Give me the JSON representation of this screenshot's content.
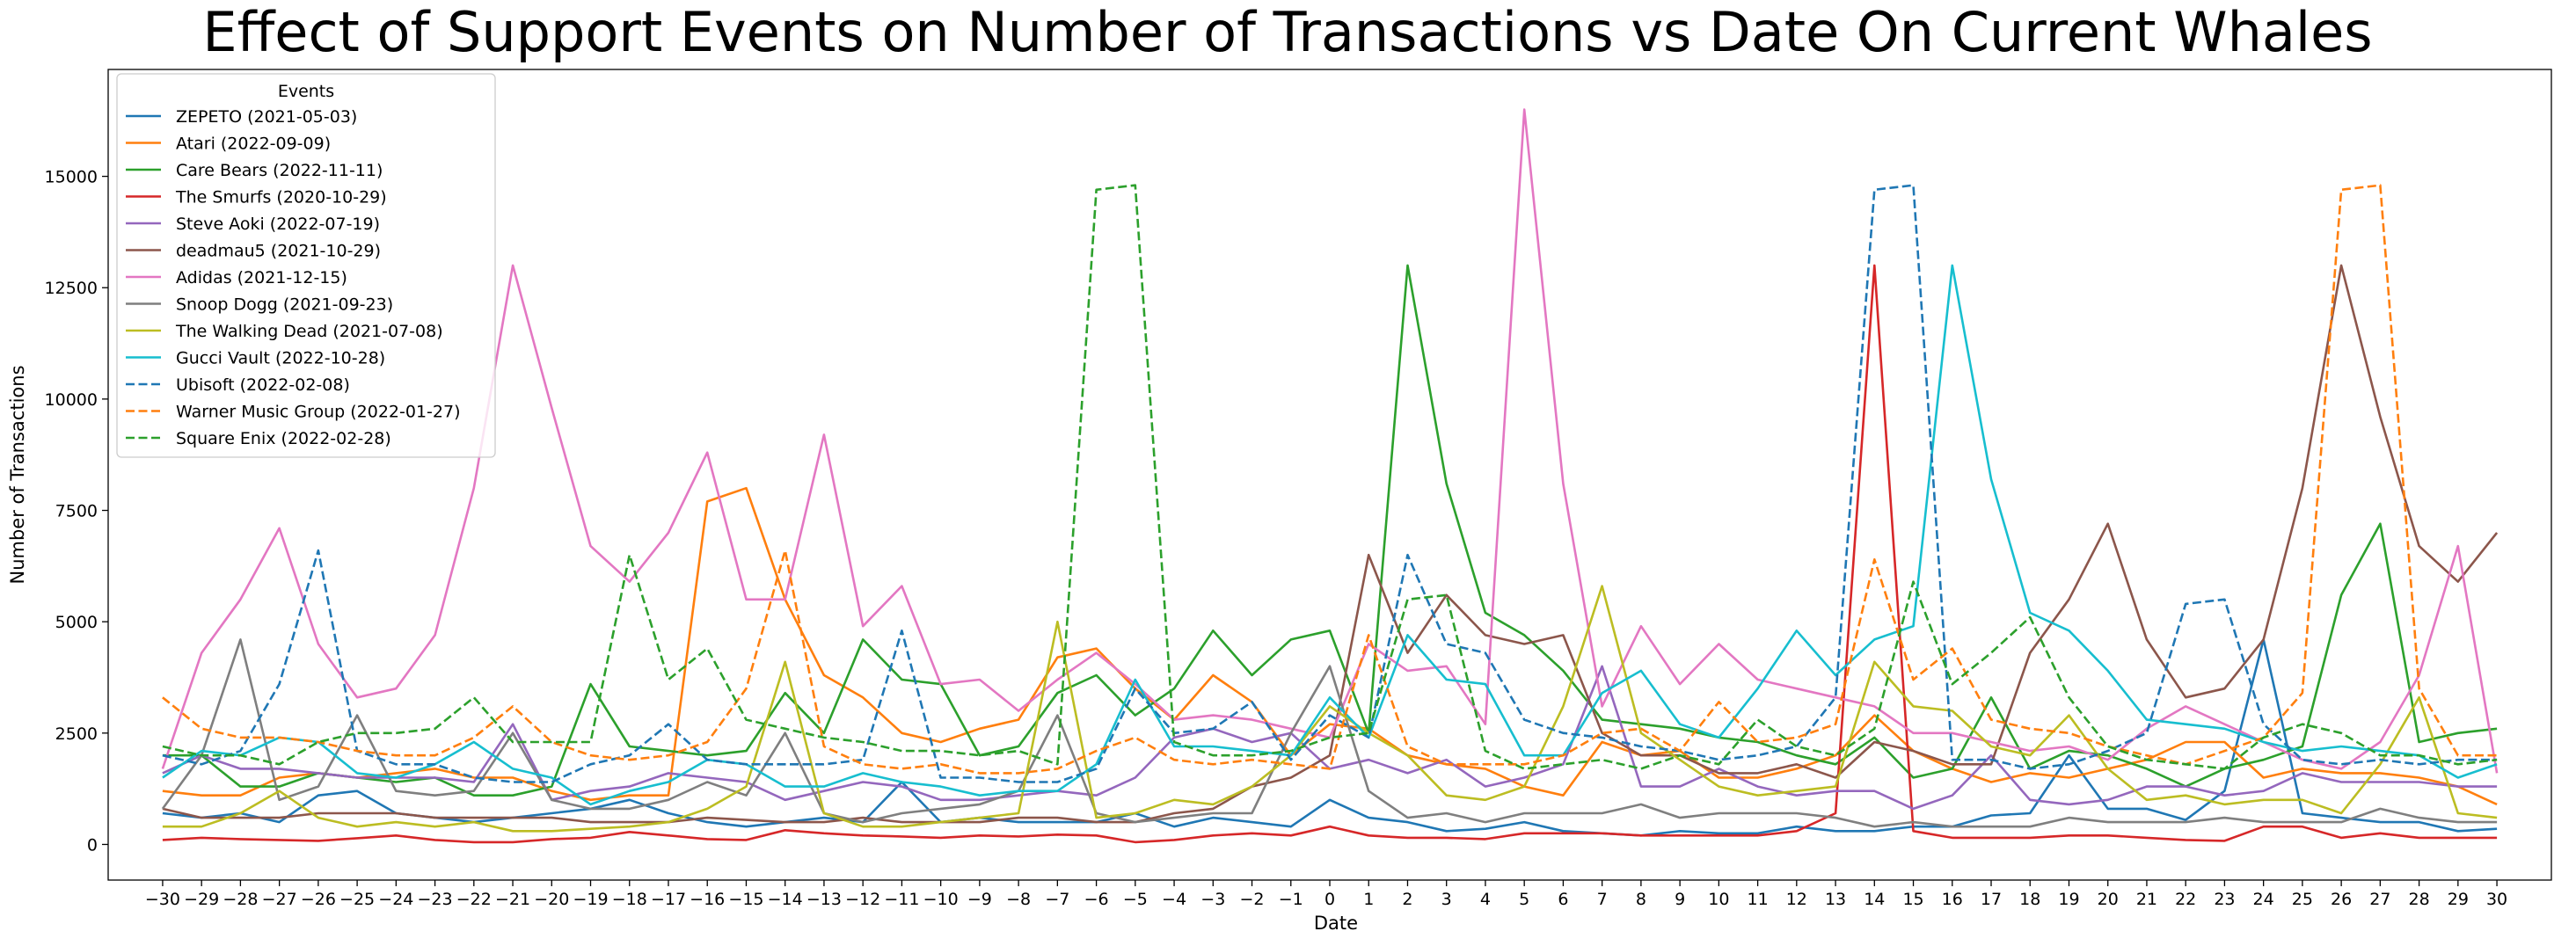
{
  "chart_data": {
    "type": "line",
    "title": "Effect of Support Events on Number of Transactions vs Date On Current Whales",
    "xlabel": "Date",
    "ylabel": "Number of Transactions",
    "legend_title": "Events",
    "legend_position": "top-left",
    "grid": false,
    "xlim": [
      -31.4,
      31.4
    ],
    "ylim": [
      -800,
      17400
    ],
    "x": [
      -30,
      -29,
      -28,
      -27,
      -26,
      -25,
      -24,
      -23,
      -22,
      -21,
      -20,
      -19,
      -18,
      -17,
      -16,
      -15,
      -14,
      -13,
      -12,
      -11,
      -10,
      -9,
      -8,
      -7,
      -6,
      -5,
      -4,
      -3,
      -2,
      -1,
      0,
      1,
      2,
      3,
      4,
      5,
      6,
      7,
      8,
      9,
      10,
      11,
      12,
      13,
      14,
      15,
      16,
      17,
      18,
      19,
      20,
      21,
      22,
      23,
      24,
      25,
      26,
      27,
      28,
      29,
      30
    ],
    "x_tick_labels": [
      "−30",
      "−29",
      "−28",
      "−27",
      "−26",
      "−25",
      "−24",
      "−23",
      "−22",
      "−21",
      "−20",
      "−19",
      "−18",
      "−17",
      "−16",
      "−15",
      "−14",
      "−13",
      "−12",
      "−11",
      "−10",
      "−9",
      "−8",
      "−7",
      "−6",
      "−5",
      "−4",
      "−3",
      "−2",
      "−1",
      "0",
      "1",
      "2",
      "3",
      "4",
      "5",
      "6",
      "7",
      "8",
      "9",
      "10",
      "11",
      "12",
      "13",
      "14",
      "15",
      "16",
      "17",
      "18",
      "19",
      "20",
      "21",
      "22",
      "23",
      "24",
      "25",
      "26",
      "27",
      "28",
      "29",
      "30"
    ],
    "y_ticks": [
      0,
      2500,
      5000,
      7500,
      10000,
      12500,
      15000
    ],
    "y_tick_labels": [
      "0",
      "2500",
      "5000",
      "7500",
      "10000",
      "12500",
      "15000"
    ],
    "series": [
      {
        "name": "ZEPETO (2021-05-03)",
        "color": "#1f77b4",
        "dash": "solid",
        "values": [
          700,
          600,
          700,
          500,
          1100,
          1200,
          700,
          600,
          500,
          600,
          700,
          800,
          1000,
          700,
          500,
          400,
          500,
          600,
          500,
          1400,
          500,
          600,
          500,
          500,
          500,
          700,
          400,
          600,
          500,
          400,
          1000,
          600,
          500,
          300,
          350,
          500,
          300,
          250,
          200,
          300,
          250,
          250,
          400,
          300,
          300,
          400,
          400,
          650,
          700,
          2000,
          800,
          800,
          550,
          1200,
          4600,
          700,
          600,
          500,
          500,
          300,
          350
        ]
      },
      {
        "name": "Atari (2022-09-09)",
        "color": "#ff7f0e",
        "dash": "solid",
        "values": [
          1200,
          1100,
          1100,
          1500,
          1600,
          1500,
          1600,
          1700,
          1500,
          1500,
          1200,
          1000,
          1100,
          1100,
          7700,
          8000,
          5500,
          3800,
          3300,
          2500,
          2300,
          2600,
          2800,
          4200,
          4400,
          3500,
          2800,
          3800,
          3200,
          2000,
          2700,
          2600,
          2000,
          1800,
          1700,
          1300,
          1100,
          2300,
          2000,
          2100,
          1500,
          1500,
          1700,
          2000,
          2900,
          2100,
          1700,
          1400,
          1600,
          1500,
          1700,
          1900,
          2300,
          2300,
          1500,
          1700,
          1600,
          1600,
          1500,
          1300,
          900
        ]
      },
      {
        "name": "Care Bears (2022-11-11)",
        "color": "#2ca02c",
        "dash": "solid",
        "values": [
          2000,
          2000,
          1300,
          1300,
          1600,
          1500,
          1400,
          1500,
          1100,
          1100,
          1300,
          3600,
          2200,
          2100,
          2000,
          2100,
          3400,
          2500,
          4600,
          3700,
          3600,
          2000,
          2200,
          3400,
          3800,
          2900,
          3500,
          4800,
          3800,
          4600,
          4800,
          2500,
          13000,
          8100,
          5200,
          4700,
          3900,
          2800,
          2700,
          2600,
          2400,
          2300,
          2000,
          1800,
          2400,
          1500,
          1700,
          3300,
          1700,
          2100,
          2000,
          1700,
          1300,
          1700,
          1900,
          2200,
          5600,
          7200,
          2300,
          2500,
          2600
        ]
      },
      {
        "name": "The Smurfs (2020-10-29)",
        "color": "#d62728",
        "dash": "solid",
        "values": [
          100,
          150,
          120,
          100,
          80,
          140,
          200,
          100,
          50,
          50,
          120,
          150,
          280,
          200,
          120,
          100,
          320,
          250,
          200,
          180,
          150,
          200,
          180,
          220,
          200,
          50,
          100,
          200,
          250,
          200,
          400,
          200,
          150,
          150,
          120,
          250,
          250,
          250,
          200,
          200,
          200,
          200,
          300,
          700,
          13000,
          300,
          150,
          150,
          150,
          200,
          200,
          150,
          100,
          80,
          400,
          400,
          150,
          250,
          150,
          150,
          150
        ]
      },
      {
        "name": "Steve Aoki (2022-07-19)",
        "color": "#9467bd",
        "dash": "solid",
        "values": [
          1600,
          2000,
          1700,
          1700,
          1600,
          1500,
          1500,
          1500,
          1400,
          2700,
          1000,
          1200,
          1300,
          1600,
          1500,
          1400,
          1000,
          1200,
          1400,
          1300,
          1000,
          1000,
          1100,
          1200,
          1100,
          1500,
          2400,
          2600,
          2300,
          2500,
          1700,
          1900,
          1600,
          1900,
          1300,
          1500,
          1800,
          4000,
          1300,
          1300,
          1700,
          1300,
          1100,
          1200,
          1200,
          800,
          1100,
          2000,
          1000,
          900,
          1000,
          1300,
          1300,
          1100,
          1200,
          1600,
          1400,
          1400,
          1400,
          1300,
          1300
        ]
      },
      {
        "name": "deadmau5 (2021-10-29)",
        "color": "#8c564b",
        "dash": "solid",
        "values": [
          800,
          600,
          600,
          600,
          700,
          700,
          700,
          600,
          600,
          600,
          600,
          500,
          500,
          500,
          600,
          550,
          500,
          500,
          600,
          500,
          500,
          500,
          600,
          600,
          500,
          500,
          700,
          800,
          1300,
          1500,
          2000,
          6500,
          4300,
          5600,
          4700,
          4500,
          4700,
          2500,
          2000,
          2000,
          1600,
          1600,
          1800,
          1500,
          2300,
          2100,
          1800,
          1800,
          4300,
          5500,
          7200,
          4600,
          3300,
          3500,
          4600,
          8000,
          13000,
          9600,
          6700,
          5900,
          7000
        ]
      },
      {
        "name": "Adidas (2021-12-15)",
        "color": "#e377c2",
        "dash": "solid",
        "values": [
          1700,
          4300,
          5500,
          7100,
          4500,
          3300,
          3500,
          4700,
          8000,
          13000,
          9800,
          6700,
          5900,
          7000,
          8800,
          5500,
          5500,
          9200,
          4900,
          5800,
          3600,
          3700,
          3000,
          3700,
          4300,
          3600,
          2800,
          2900,
          2800,
          2600,
          2400,
          4500,
          3900,
          4000,
          2700,
          16500,
          8100,
          3100,
          4900,
          3600,
          4500,
          3700,
          3500,
          3300,
          3100,
          2500,
          2500,
          2300,
          2100,
          2200,
          1900,
          2600,
          3100,
          2700,
          2300,
          1900,
          1700,
          2300,
          3800,
          6700,
          1600
        ]
      },
      {
        "name": "Snoop Dogg (2021-09-23)",
        "color": "#7f7f7f",
        "dash": "solid",
        "values": [
          800,
          2000,
          4600,
          1000,
          1300,
          2900,
          1200,
          1100,
          1200,
          2500,
          1000,
          800,
          800,
          1000,
          1400,
          1100,
          2500,
          700,
          500,
          700,
          800,
          900,
          1200,
          2900,
          700,
          500,
          600,
          700,
          700,
          2500,
          4000,
          1200,
          600,
          700,
          500,
          700,
          700,
          700,
          900,
          600,
          700,
          700,
          700,
          600,
          400,
          500,
          400,
          400,
          400,
          600,
          500,
          500,
          500,
          600,
          500,
          500,
          500,
          800,
          600,
          500,
          500
        ]
      },
      {
        "name": "The Walking Dead (2021-07-08)",
        "color": "#bcbd22",
        "dash": "solid",
        "values": [
          400,
          400,
          700,
          1200,
          600,
          400,
          500,
          400,
          500,
          300,
          300,
          350,
          400,
          500,
          800,
          1300,
          4100,
          700,
          400,
          400,
          500,
          600,
          700,
          5000,
          600,
          700,
          1000,
          900,
          1300,
          2000,
          3100,
          2500,
          2000,
          1100,
          1000,
          1300,
          3100,
          5800,
          2500,
          1900,
          1300,
          1100,
          1200,
          1300,
          4100,
          3100,
          3000,
          2200,
          2000,
          2900,
          1700,
          1000,
          1100,
          900,
          1000,
          1000,
          700,
          1800,
          3300,
          700,
          600
        ]
      },
      {
        "name": "Gucci Vault (2022-10-28)",
        "color": "#17becf",
        "dash": "solid",
        "values": [
          1500,
          2100,
          2000,
          2400,
          2300,
          1600,
          1500,
          1800,
          2300,
          1700,
          1500,
          900,
          1200,
          1400,
          1900,
          1800,
          1300,
          1300,
          1600,
          1400,
          1300,
          1100,
          1200,
          1200,
          1800,
          3700,
          2200,
          2200,
          2100,
          2000,
          3300,
          2400,
          4700,
          3700,
          3600,
          2000,
          2000,
          3400,
          3900,
          2700,
          2400,
          3500,
          4800,
          3800,
          4600,
          4900,
          13000,
          8200,
          5200,
          4800,
          3900,
          2800,
          2700,
          2600,
          2300,
          2100,
          2200,
          2100,
          2000,
          1500,
          1800
        ]
      },
      {
        "name": "Ubisoft (2022-02-08)",
        "color": "#1f77b4",
        "dash": "dashed",
        "values": [
          2000,
          1800,
          2100,
          3600,
          6600,
          2100,
          1800,
          1800,
          1500,
          1400,
          1400,
          1800,
          2000,
          2700,
          1900,
          1800,
          1800,
          1800,
          1900,
          4800,
          1500,
          1500,
          1400,
          1400,
          1700,
          3500,
          2500,
          2600,
          3200,
          1900,
          2900,
          2400,
          6500,
          4500,
          4300,
          2800,
          2500,
          2400,
          2200,
          2100,
          1900,
          2000,
          2200,
          3300,
          14700,
          14800,
          1900,
          1900,
          1700,
          1800,
          2100,
          2500,
          5400,
          5500,
          2700,
          1900,
          1800,
          1900,
          1800,
          1900,
          1900
        ]
      },
      {
        "name": "Warner Music Group (2022-01-27)",
        "color": "#ff7f0e",
        "dash": "dashed",
        "values": [
          3300,
          2600,
          2400,
          2400,
          2300,
          2100,
          2000,
          2000,
          2400,
          3100,
          2300,
          2000,
          1900,
          2000,
          2300,
          3500,
          6600,
          2200,
          1800,
          1700,
          1800,
          1600,
          1600,
          1700,
          2100,
          2400,
          1900,
          1800,
          1900,
          1800,
          1700,
          4700,
          2200,
          1800,
          1800,
          1800,
          2000,
          2500,
          2600,
          2100,
          3200,
          2300,
          2400,
          2700,
          6400,
          3700,
          4400,
          2800,
          2600,
          2500,
          2200,
          2000,
          1800,
          2100,
          2400,
          3400,
          14700,
          14800,
          3500,
          2000,
          2000
        ]
      },
      {
        "name": "Square Enix (2022-02-28)",
        "color": "#2ca02c",
        "dash": "dashed",
        "values": [
          2200,
          2000,
          2000,
          1800,
          2300,
          2500,
          2500,
          2600,
          3300,
          2300,
          2300,
          2300,
          6500,
          3700,
          4400,
          2800,
          2600,
          2400,
          2300,
          2100,
          2100,
          2000,
          2100,
          1800,
          14700,
          14800,
          2300,
          2000,
          2000,
          2100,
          2400,
          2500,
          5500,
          5600,
          2100,
          1700,
          1800,
          1900,
          1700,
          2000,
          1800,
          2800,
          2200,
          2000,
          2600,
          5900,
          3600,
          4300,
          5100,
          3300,
          2200,
          1900,
          1800,
          1700,
          2400,
          2700,
          2500,
          2000,
          2000,
          1800,
          1900
        ]
      }
    ]
  }
}
